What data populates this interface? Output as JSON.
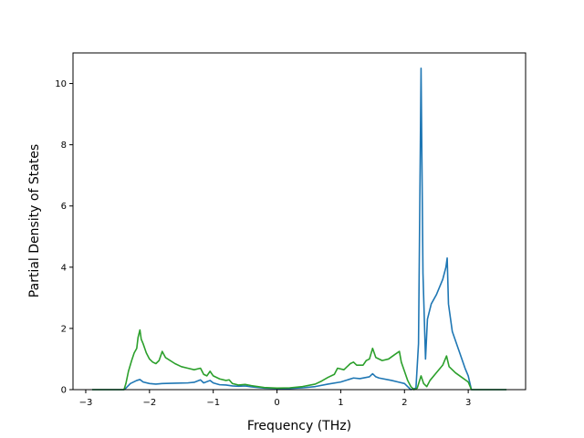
{
  "chart_data": {
    "type": "line",
    "title": "",
    "xlabel": "Frequency (THz)",
    "ylabel": "Partial Density of States",
    "xlim": [
      -3.2,
      3.9
    ],
    "ylim": [
      0,
      11.0
    ],
    "xticks": [
      -3,
      -2,
      -1,
      0,
      1,
      2,
      3
    ],
    "yticks": [
      0,
      2,
      4,
      6,
      8,
      10
    ],
    "grid": false,
    "legend": "none",
    "series": [
      {
        "color": "#1f77b4",
        "points": [
          [
            -2.9,
            0
          ],
          [
            -2.4,
            0
          ],
          [
            -2.37,
            0.05
          ],
          [
            -2.3,
            0.2
          ],
          [
            -2.2,
            0.3
          ],
          [
            -2.15,
            0.33
          ],
          [
            -2.1,
            0.25
          ],
          [
            -2.0,
            0.2
          ],
          [
            -1.9,
            0.18
          ],
          [
            -1.8,
            0.2
          ],
          [
            -1.6,
            0.21
          ],
          [
            -1.4,
            0.22
          ],
          [
            -1.3,
            0.24
          ],
          [
            -1.2,
            0.32
          ],
          [
            -1.15,
            0.22
          ],
          [
            -1.05,
            0.3
          ],
          [
            -1.0,
            0.22
          ],
          [
            -0.9,
            0.16
          ],
          [
            -0.8,
            0.15
          ],
          [
            -0.7,
            0.12
          ],
          [
            -0.6,
            0.11
          ],
          [
            -0.5,
            0.12
          ],
          [
            -0.4,
            0.09
          ],
          [
            -0.2,
            0.05
          ],
          [
            0.0,
            0.04
          ],
          [
            0.2,
            0.04
          ],
          [
            0.4,
            0.06
          ],
          [
            0.6,
            0.1
          ],
          [
            0.8,
            0.18
          ],
          [
            1.0,
            0.25
          ],
          [
            1.2,
            0.38
          ],
          [
            1.3,
            0.36
          ],
          [
            1.45,
            0.42
          ],
          [
            1.5,
            0.52
          ],
          [
            1.55,
            0.42
          ],
          [
            1.6,
            0.38
          ],
          [
            1.8,
            0.3
          ],
          [
            1.9,
            0.25
          ],
          [
            2.0,
            0.2
          ],
          [
            2.05,
            0.1
          ],
          [
            2.1,
            0
          ],
          [
            2.18,
            0.05
          ],
          [
            2.22,
            1.5
          ],
          [
            2.26,
            10.5
          ],
          [
            2.29,
            3.8
          ],
          [
            2.33,
            1.0
          ],
          [
            2.36,
            2.3
          ],
          [
            2.42,
            2.8
          ],
          [
            2.5,
            3.1
          ],
          [
            2.6,
            3.6
          ],
          [
            2.65,
            4.0
          ],
          [
            2.67,
            4.3
          ],
          [
            2.69,
            2.8
          ],
          [
            2.75,
            1.9
          ],
          [
            2.85,
            1.3
          ],
          [
            2.95,
            0.7
          ],
          [
            3.0,
            0.45
          ],
          [
            3.05,
            0
          ],
          [
            3.6,
            0
          ]
        ]
      },
      {
        "color": "#2ca02c",
        "points": [
          [
            -2.9,
            0
          ],
          [
            -2.4,
            0
          ],
          [
            -2.37,
            0.2
          ],
          [
            -2.33,
            0.6
          ],
          [
            -2.28,
            0.95
          ],
          [
            -2.24,
            1.2
          ],
          [
            -2.2,
            1.35
          ],
          [
            -2.18,
            1.7
          ],
          [
            -2.15,
            1.95
          ],
          [
            -2.13,
            1.65
          ],
          [
            -2.1,
            1.5
          ],
          [
            -2.05,
            1.2
          ],
          [
            -2.0,
            1.0
          ],
          [
            -1.95,
            0.9
          ],
          [
            -1.9,
            0.85
          ],
          [
            -1.85,
            0.95
          ],
          [
            -1.8,
            1.25
          ],
          [
            -1.75,
            1.05
          ],
          [
            -1.6,
            0.85
          ],
          [
            -1.5,
            0.75
          ],
          [
            -1.4,
            0.7
          ],
          [
            -1.3,
            0.65
          ],
          [
            -1.2,
            0.7
          ],
          [
            -1.15,
            0.5
          ],
          [
            -1.1,
            0.45
          ],
          [
            -1.05,
            0.6
          ],
          [
            -1.0,
            0.45
          ],
          [
            -0.9,
            0.35
          ],
          [
            -0.8,
            0.3
          ],
          [
            -0.75,
            0.32
          ],
          [
            -0.7,
            0.2
          ],
          [
            -0.6,
            0.15
          ],
          [
            -0.5,
            0.17
          ],
          [
            -0.4,
            0.13
          ],
          [
            -0.3,
            0.1
          ],
          [
            -0.2,
            0.07
          ],
          [
            0.0,
            0.05
          ],
          [
            0.2,
            0.06
          ],
          [
            0.4,
            0.1
          ],
          [
            0.6,
            0.18
          ],
          [
            0.7,
            0.28
          ],
          [
            0.8,
            0.4
          ],
          [
            0.9,
            0.5
          ],
          [
            0.95,
            0.7
          ],
          [
            1.05,
            0.65
          ],
          [
            1.1,
            0.75
          ],
          [
            1.15,
            0.85
          ],
          [
            1.2,
            0.9
          ],
          [
            1.25,
            0.8
          ],
          [
            1.35,
            0.8
          ],
          [
            1.4,
            0.95
          ],
          [
            1.45,
            1.0
          ],
          [
            1.5,
            1.35
          ],
          [
            1.55,
            1.05
          ],
          [
            1.65,
            0.95
          ],
          [
            1.75,
            1.0
          ],
          [
            1.85,
            1.15
          ],
          [
            1.92,
            1.25
          ],
          [
            1.95,
            0.9
          ],
          [
            2.0,
            0.6
          ],
          [
            2.05,
            0.3
          ],
          [
            2.1,
            0.1
          ],
          [
            2.15,
            0
          ],
          [
            2.2,
            0.05
          ],
          [
            2.26,
            0.45
          ],
          [
            2.3,
            0.2
          ],
          [
            2.35,
            0.1
          ],
          [
            2.4,
            0.3
          ],
          [
            2.5,
            0.55
          ],
          [
            2.6,
            0.8
          ],
          [
            2.66,
            1.1
          ],
          [
            2.7,
            0.75
          ],
          [
            2.8,
            0.55
          ],
          [
            2.9,
            0.4
          ],
          [
            3.0,
            0.25
          ],
          [
            3.05,
            0
          ],
          [
            3.6,
            0
          ]
        ]
      }
    ]
  }
}
